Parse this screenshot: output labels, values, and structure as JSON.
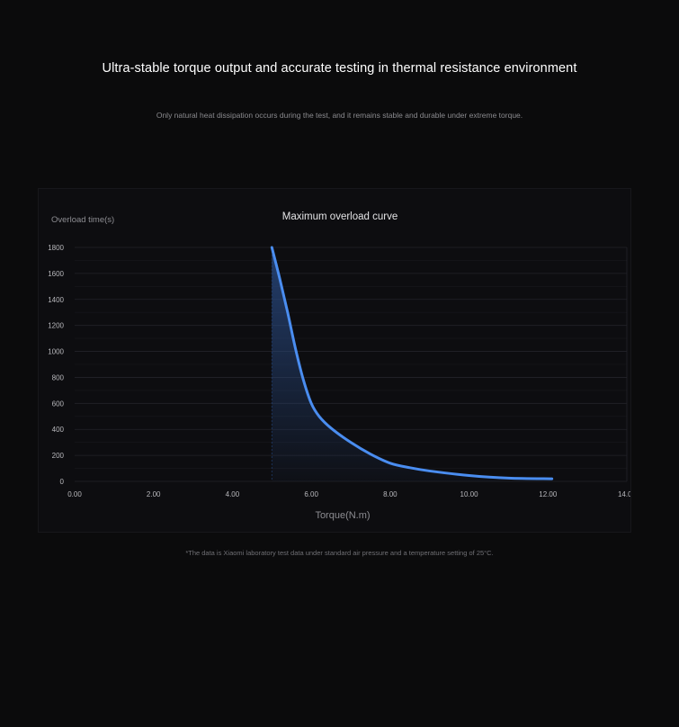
{
  "headline": "Ultra-stable torque output and accurate testing in thermal resistance environment",
  "subline": "Only natural heat dissipation occurs during the test, and it remains stable and durable under extreme torque.",
  "footnote": "*The data is Xiaomi laboratory test data under standard air pressure and a temperature setting of 25°C.",
  "colors": {
    "curve": "#4a8df0",
    "fill_top": "#2b4f8c",
    "grid": "#232329",
    "label": "#b8b8bc"
  },
  "chart_data": {
    "type": "area",
    "title": "Maximum overload curve",
    "xlabel": "Torque(N.m)",
    "ylabel": "Overload time(s)",
    "xlim": [
      0,
      14
    ],
    "ylim": [
      0,
      1800
    ],
    "x_ticks": [
      "0.00",
      "2.00",
      "4.00",
      "6.00",
      "8.00",
      "10.00",
      "12.00",
      "14.00"
    ],
    "y_ticks": [
      "0",
      "200",
      "400",
      "600",
      "800",
      "1000",
      "1200",
      "1400",
      "1600",
      "1800"
    ],
    "grid": true,
    "x": [
      5.0,
      5.2,
      5.4,
      5.6,
      5.8,
      6.0,
      6.2,
      6.5,
      7.0,
      7.5,
      8.0,
      8.5,
      9.0,
      10.0,
      11.0,
      12.1
    ],
    "y": [
      1800,
      1560,
      1300,
      1020,
      780,
      600,
      500,
      410,
      300,
      210,
      140,
      105,
      80,
      45,
      25,
      20
    ]
  }
}
